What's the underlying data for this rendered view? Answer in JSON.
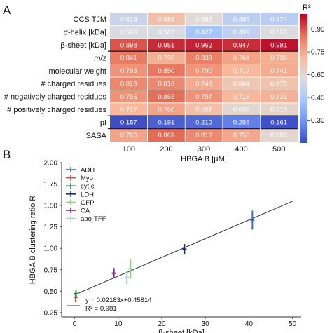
{
  "panel_a_label": "A",
  "panel_b_label": "B",
  "chart_data": [
    {
      "type": "heatmap",
      "xlabel": "HBGA B [µM]",
      "x_categories": [
        "100",
        "200",
        "300",
        "400",
        "500"
      ],
      "y_categories": [
        "CCS TJM",
        "α-helix [kDa]",
        "β-sheet [kDa]",
        "m/z",
        "molecular weight",
        "# charged residues",
        "# negatively charged residues",
        "# positively charged residues",
        "pI",
        "SASA"
      ],
      "values": [
        [
          0.519,
          0.688,
          0.588,
          0.485,
          0.474
        ],
        [
          0.563,
          0.562,
          0.427,
          0.491,
          0.563
        ],
        [
          0.898,
          0.951,
          0.962,
          0.947,
          0.981
        ],
        [
          0.841,
          0.736,
          0.833,
          0.761,
          0.736
        ],
        [
          0.795,
          0.85,
          0.79,
          0.717,
          0.741
        ],
        [
          0.816,
          0.816,
          0.746,
          0.664,
          0.676
        ],
        [
          0.795,
          0.863,
          0.797,
          0.718,
          0.731
        ],
        [
          0.717,
          0.76,
          0.687,
          0.603,
          0.618
        ],
        [
          0.157,
          0.191,
          0.21,
          0.256,
          0.161
        ],
        [
          0.76,
          0.869,
          0.812,
          0.75,
          0.605
        ]
      ],
      "value_labels": [
        [
          "0.519",
          "0.688",
          "0.588",
          "0.485",
          "0.474"
        ],
        [
          "0.563",
          "0.562",
          "0.427",
          "0.491",
          "0.563"
        ],
        [
          "0.898",
          "0.951",
          "0.962",
          "0.947",
          "0.981"
        ],
        [
          "0.841",
          "0.736",
          "0.833",
          "0.761",
          "0.736"
        ],
        [
          "0.795",
          "0.850",
          "0.790",
          "0.717",
          "0.741"
        ],
        [
          "0.816",
          "0.816",
          "0.746",
          "0.664",
          "0.676"
        ],
        [
          "0.795",
          "0.863",
          "0.797",
          "0.718",
          "0.731"
        ],
        [
          "0.717",
          "0.760",
          "0.687",
          "0.603",
          "0.618"
        ],
        [
          "0.157",
          "0.191",
          "0.210",
          "0.256",
          "0.161"
        ],
        [
          "0.760",
          "0.869",
          "0.812",
          "0.750",
          "0.605"
        ]
      ],
      "colorbar": {
        "label": "R²",
        "range": [
          0.15,
          1.0
        ],
        "ticks": [
          0.3,
          0.45,
          0.6,
          0.75,
          0.9
        ],
        "tick_labels": [
          "0.30",
          "0.45",
          "0.60",
          "0.75",
          "0.90"
        ],
        "colormap": "coolwarm",
        "stops": [
          "#3b4cc0",
          "#6f92f3",
          "#aac7fd",
          "#dddddd",
          "#f7b89c",
          "#e7745b",
          "#b40426"
        ]
      },
      "colors": {
        "strong_row_separator": "#222222",
        "light_separator": "#ffffff"
      }
    },
    {
      "type": "scatter",
      "xlabel": "β-sheet [kDa]",
      "ylabel": "HBGA B clustering ratio R",
      "xlim": [
        -3,
        52
      ],
      "ylim": [
        0.2,
        2.0
      ],
      "x_ticks": [
        0,
        10,
        20,
        30,
        40,
        50
      ],
      "x_tick_labels": [
        "0",
        "10",
        "20",
        "30",
        "40",
        "50"
      ],
      "y_ticks": [
        0.25,
        0.5,
        0.75,
        1.0,
        1.25,
        1.5,
        1.75,
        2.0
      ],
      "y_tick_labels": [
        "0.25",
        "0.50",
        "0.75",
        "1.00",
        "1.25",
        "1.50",
        "1.75",
        "2.00"
      ],
      "grid": false,
      "legend_position": "top-left",
      "series": [
        {
          "name": "ADH",
          "color": "#3a6fb0",
          "x": [
            40.8
          ],
          "y": [
            1.33
          ],
          "yerr": [
            0.11
          ]
        },
        {
          "name": "Myo",
          "color": "#d44a4a",
          "x": [
            0.2
          ],
          "y": [
            0.43
          ],
          "yerr": [
            0.06
          ]
        },
        {
          "name": "cyt c",
          "color": "#1f8a3b",
          "x": [
            0.3
          ],
          "y": [
            0.47
          ],
          "yerr": [
            0.05
          ]
        },
        {
          "name": "LDH",
          "color": "#1f2f66",
          "x": [
            25.2
          ],
          "y": [
            0.99
          ],
          "yerr": [
            0.06
          ]
        },
        {
          "name": "GFP",
          "color": "#8cd17d",
          "x": [
            12.8
          ],
          "y": [
            0.76
          ],
          "yerr": [
            0.11
          ]
        },
        {
          "name": "CA",
          "color": "#7a2a8c",
          "x": [
            9.0
          ],
          "y": [
            0.71
          ],
          "yerr": [
            0.06
          ]
        },
        {
          "name": "apo-TFF",
          "color": "#a6cbe8",
          "x": [
            12.0
          ],
          "y": [
            0.66
          ],
          "yerr": [
            0.08
          ]
        }
      ],
      "fit": {
        "slope": 0.02183,
        "intercept": 0.45814,
        "x_range": [
          0,
          50
        ],
        "color": "#333333",
        "equation_label": "y = 0.02183x+0.45814",
        "r2_label": "R² = 0.981"
      }
    }
  ]
}
